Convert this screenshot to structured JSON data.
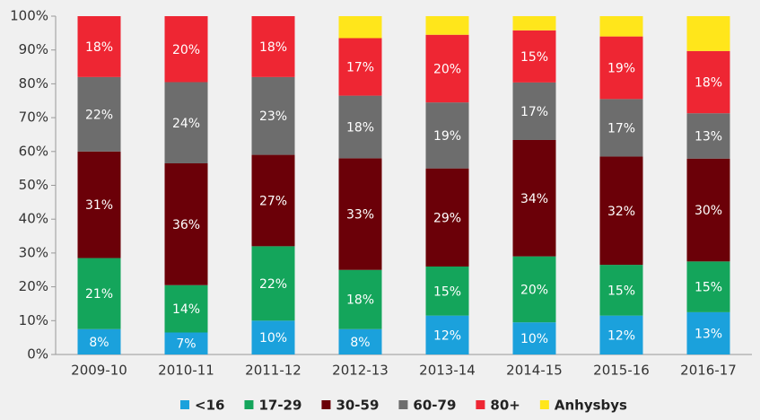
{
  "chart_data": {
    "type": "stacked_bar",
    "categories": [
      "2009-10",
      "2010-11",
      "2011-12",
      "2012-13",
      "2013-14",
      "2014-15",
      "2015-16",
      "2016-17"
    ],
    "series": [
      {
        "name": "<16",
        "color": "#1ba1dc",
        "values": [
          7.5,
          6.5,
          10,
          7.5,
          11.5,
          9.5,
          11.5,
          12.5
        ],
        "value_labels": [
          "8%",
          "7%",
          "10%",
          "8%",
          "12%",
          "10%",
          "12%",
          "13%"
        ]
      },
      {
        "name": "17-29",
        "color": "#14a55b",
        "values": [
          21,
          14,
          22,
          17.5,
          14.5,
          19.5,
          15,
          15
        ],
        "value_labels": [
          "21%",
          "14%",
          "22%",
          "18%",
          "15%",
          "20%",
          "15%",
          "15%"
        ]
      },
      {
        "name": "30-59",
        "color": "#6b0008",
        "values": [
          31.5,
          36,
          27,
          33,
          29,
          34.4,
          32,
          30.4
        ],
        "value_labels": [
          "31%",
          "36%",
          "27%",
          "33%",
          "29%",
          "34%",
          "32%",
          "30%"
        ]
      },
      {
        "name": "60-79",
        "color": "#6d6d6d",
        "values": [
          22,
          24,
          23,
          18.5,
          19.5,
          17,
          17,
          13.4
        ],
        "value_labels": [
          "22%",
          "24%",
          "23%",
          "18%",
          "19%",
          "17%",
          "17%",
          "13%"
        ]
      },
      {
        "name": "80+",
        "color": "#ee2633",
        "values": [
          18,
          19.5,
          18,
          17,
          20,
          15.4,
          18.5,
          18.4
        ],
        "value_labels": [
          "18%",
          "20%",
          "18%",
          "17%",
          "20%",
          "15%",
          "19%",
          "18%"
        ]
      },
      {
        "name": "Anhysbys",
        "color": "#ffe61b",
        "values": [
          0,
          0,
          0,
          6.5,
          5.5,
          4.2,
          6,
          10.3
        ]
      }
    ],
    "ylim": [
      0,
      100
    ],
    "yticks": [
      {
        "value": 0,
        "label": "0%"
      },
      {
        "value": 10,
        "label": "10%"
      },
      {
        "value": 20,
        "label": "20%"
      },
      {
        "value": 30,
        "label": "30%"
      },
      {
        "value": 40,
        "label": "40%"
      },
      {
        "value": 50,
        "label": "50%"
      },
      {
        "value": 60,
        "label": "60%"
      },
      {
        "value": 70,
        "label": "70%"
      },
      {
        "value": 80,
        "label": "80%"
      },
      {
        "value": 90,
        "label": "90%"
      },
      {
        "value": 100,
        "label": "100%"
      }
    ],
    "grid": false,
    "legend": "bottom"
  }
}
